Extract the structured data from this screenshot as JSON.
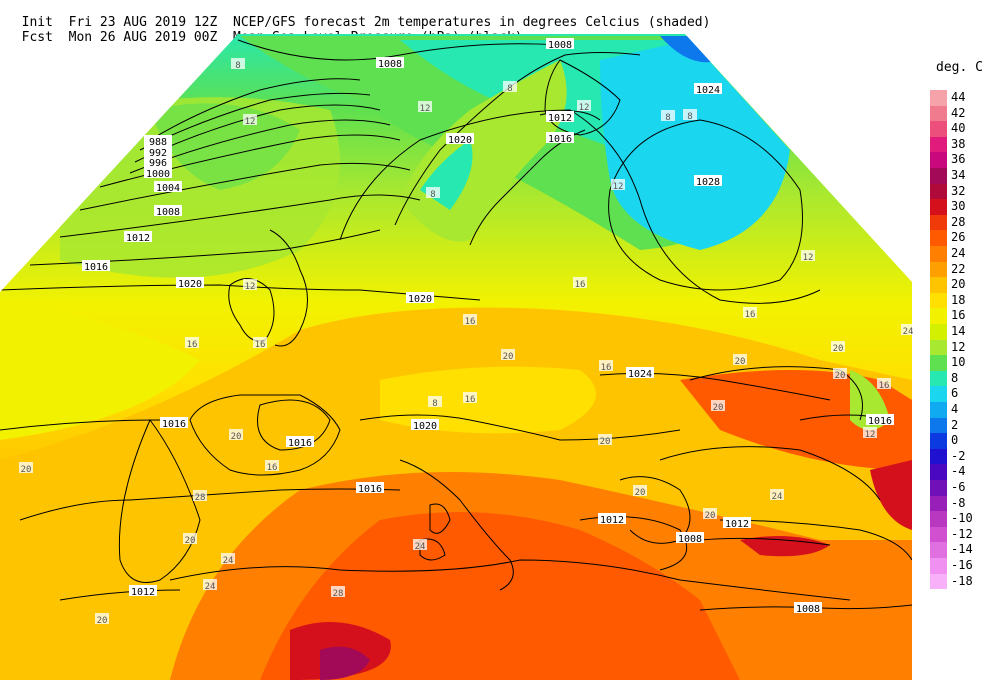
{
  "header": {
    "init_label": "Init",
    "init_time": "Fri 23 AUG 2019 12Z",
    "fcst_label": "Fcst",
    "fcst_time": "Mon 26 AUG 2019 00Z",
    "line1_title": "NCEP/GFS forecast 2m temperatures in degrees Celcius (shaded)",
    "line2_title": "Mean Sea-Level Pressure (hPa) (black)."
  },
  "legend": {
    "title": "deg. C",
    "entries": [
      {
        "label": "44",
        "color": "#f5a3a8"
      },
      {
        "label": "42",
        "color": "#f07a8e"
      },
      {
        "label": "40",
        "color": "#ec4f7c"
      },
      {
        "label": "38",
        "color": "#e01b7b"
      },
      {
        "label": "36",
        "color": "#c8087c"
      },
      {
        "label": "34",
        "color": "#a20a58"
      },
      {
        "label": "32",
        "color": "#b00a3a"
      },
      {
        "label": "30",
        "color": "#d4101c"
      },
      {
        "label": "28",
        "color": "#f03a0a"
      },
      {
        "label": "26",
        "color": "#ff5a00"
      },
      {
        "label": "24",
        "color": "#ff8000"
      },
      {
        "label": "22",
        "color": "#ffa000"
      },
      {
        "label": "20",
        "color": "#ffc400"
      },
      {
        "label": "18",
        "color": "#ffe000"
      },
      {
        "label": "16",
        "color": "#f2f200"
      },
      {
        "label": "14",
        "color": "#d2f000"
      },
      {
        "label": "12",
        "color": "#a8e830"
      },
      {
        "label": "10",
        "color": "#5ee050"
      },
      {
        "label": "8",
        "color": "#26e8b0"
      },
      {
        "label": "6",
        "color": "#1ad6ee"
      },
      {
        "label": "4",
        "color": "#10aaf0"
      },
      {
        "label": "2",
        "color": "#0c78ec"
      },
      {
        "label": "0",
        "color": "#0a3ae0"
      },
      {
        "label": "-2",
        "color": "#2010d0"
      },
      {
        "label": "-4",
        "color": "#4a08c0"
      },
      {
        "label": "-6",
        "color": "#7010b8"
      },
      {
        "label": "-8",
        "color": "#9820b8"
      },
      {
        "label": "-10",
        "color": "#b838c0"
      },
      {
        "label": "-12",
        "color": "#d050d0"
      },
      {
        "label": "-14",
        "color": "#e070e0"
      },
      {
        "label": "-16",
        "color": "#f090f0"
      },
      {
        "label": "-18",
        "color": "#f8b0f8"
      }
    ]
  },
  "map": {
    "isobar_labels": [
      "1008",
      "1008",
      "988",
      "992",
      "996",
      "1000",
      "1004",
      "1008",
      "1012",
      "1016",
      "1020",
      "1020",
      "1012",
      "1016",
      "1024",
      "1028",
      "1024",
      "1016",
      "1020",
      "1020",
      "1016",
      "1016",
      "1016",
      "1012",
      "1012",
      "1008",
      "1008",
      "1012"
    ],
    "temp_labels": [
      "8",
      "12",
      "12",
      "8",
      "12",
      "8",
      "12",
      "8",
      "12",
      "12",
      "16",
      "16",
      "16",
      "16",
      "16",
      "20",
      "20",
      "20",
      "20",
      "20",
      "16",
      "24",
      "24",
      "24",
      "24",
      "20",
      "20",
      "28",
      "28",
      "24",
      "16",
      "16",
      "20",
      "12",
      "16",
      "20",
      "20",
      "20",
      "20",
      "8",
      "8"
    ]
  }
}
